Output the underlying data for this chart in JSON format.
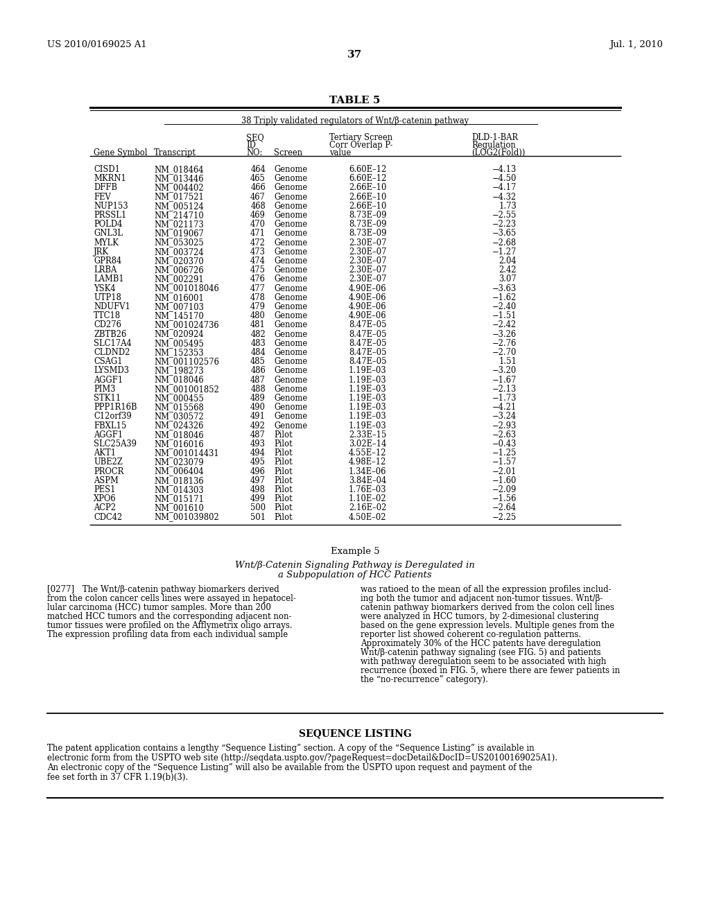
{
  "patent_number": "US 2010/0169025 A1",
  "date": "Jul. 1, 2010",
  "page_number": "37",
  "table_title": "TABLE 5",
  "table_subtitle": "38 Triply validated regulators of Wnt/β-catenin pathway",
  "table_data": [
    [
      "CISD1",
      "NM_018464",
      "464",
      "Genome",
      "6.60E–12",
      "−4.13"
    ],
    [
      "MKRN1",
      "NM_013446",
      "465",
      "Genome",
      "6.60E–12",
      "−4.50"
    ],
    [
      "DFFB",
      "NM_004402",
      "466",
      "Genome",
      "2.66E–10",
      "−4.17"
    ],
    [
      "FEV",
      "NM_017521",
      "467",
      "Genome",
      "2.66E–10",
      "−4.32"
    ],
    [
      "NUP153",
      "NM_005124",
      "468",
      "Genome",
      "2.66E–10",
      "1.73"
    ],
    [
      "PRSSL1",
      "NM_214710",
      "469",
      "Genome",
      "8.73E–09",
      "−2.55"
    ],
    [
      "POLD4",
      "NM_021173",
      "470",
      "Genome",
      "8.73E–09",
      "−2.23"
    ],
    [
      "GNL3L",
      "NM_019067",
      "471",
      "Genome",
      "8.73E–09",
      "−3.65"
    ],
    [
      "MYLK",
      "NM_053025",
      "472",
      "Genome",
      "2.30E–07",
      "−2.68"
    ],
    [
      "JRK",
      "NM_003724",
      "473",
      "Genome",
      "2.30E–07",
      "−1.27"
    ],
    [
      "GPR84",
      "NM_020370",
      "474",
      "Genome",
      "2.30E–07",
      "2.04"
    ],
    [
      "LRBA",
      "NM_006726",
      "475",
      "Genome",
      "2.30E–07",
      "2.42"
    ],
    [
      "LAMB1",
      "NM_002291",
      "476",
      "Genome",
      "2.30E–07",
      "3.07"
    ],
    [
      "YSK4",
      "NM_001018046",
      "477",
      "Genome",
      "4.90E–06",
      "−3.63"
    ],
    [
      "UTP18",
      "NM_016001",
      "478",
      "Genome",
      "4.90E–06",
      "−1.62"
    ],
    [
      "NDUFV1",
      "NM_007103",
      "479",
      "Genome",
      "4.90E–06",
      "−2.40"
    ],
    [
      "TTC18",
      "NM_145170",
      "480",
      "Genome",
      "4.90E–06",
      "−1.51"
    ],
    [
      "CD276",
      "NM_001024736",
      "481",
      "Genome",
      "8.47E–05",
      "−2.42"
    ],
    [
      "ZBTB26",
      "NM_020924",
      "482",
      "Genome",
      "8.47E–05",
      "−3.26"
    ],
    [
      "SLC17A4",
      "NM_005495",
      "483",
      "Genome",
      "8.47E–05",
      "−2.76"
    ],
    [
      "CLDND2",
      "NM_152353",
      "484",
      "Genome",
      "8.47E–05",
      "−2.70"
    ],
    [
      "CSAG1",
      "NM_001102576",
      "485",
      "Genome",
      "8.47E–05",
      "1.51"
    ],
    [
      "LYSMD3",
      "NM_198273",
      "486",
      "Genome",
      "1.19E–03",
      "−3.20"
    ],
    [
      "AGGF1",
      "NM_018046",
      "487",
      "Genome",
      "1.19E–03",
      "−1.67"
    ],
    [
      "PIM3",
      "NM_001001852",
      "488",
      "Genome",
      "1.19E–03",
      "−2.13"
    ],
    [
      "STK11",
      "NM_000455",
      "489",
      "Genome",
      "1.19E–03",
      "−1.73"
    ],
    [
      "PPP1R16B",
      "NM_015568",
      "490",
      "Genome",
      "1.19E–03",
      "−4.21"
    ],
    [
      "C12orf39",
      "NM_030572",
      "491",
      "Genome",
      "1.19E–03",
      "−3.24"
    ],
    [
      "FBXL15",
      "NM_024326",
      "492",
      "Genome",
      "1.19E–03",
      "−2.93"
    ],
    [
      "AGGF1",
      "NM_018046",
      "487",
      "Pilot",
      "2.33E–15",
      "−2.63"
    ],
    [
      "SLC25A39",
      "NM_016016",
      "493",
      "Pilot",
      "3.02E–14",
      "−0.43"
    ],
    [
      "AKT1",
      "NM_001014431",
      "494",
      "Pilot",
      "4.55E–12",
      "−1.25"
    ],
    [
      "UBE2Z",
      "NM_023079",
      "495",
      "Pilot",
      "4.98E–12",
      "−1.57"
    ],
    [
      "PROCR",
      "NM_006404",
      "496",
      "Pilot",
      "1.34E–06",
      "−2.01"
    ],
    [
      "ASPM",
      "NM_018136",
      "497",
      "Pilot",
      "3.84E–04",
      "−1.60"
    ],
    [
      "PES1",
      "NM_014303",
      "498",
      "Pilot",
      "1.76E–03",
      "−2.09"
    ],
    [
      "XPO6",
      "NM_015171",
      "499",
      "Pilot",
      "1.10E–02",
      "−1.56"
    ],
    [
      "ACP2",
      "NM_001610",
      "500",
      "Pilot",
      "2.16E–02",
      "−2.64"
    ],
    [
      "CDC42",
      "NM_001039802",
      "501",
      "Pilot",
      "4.50E–02",
      "−2.25"
    ]
  ],
  "example_title": "Example 5",
  "example_subtitle_1": "Wnt/β-Catenin Signaling Pathway is Deregulated in",
  "example_subtitle_2": "a Subpopulation of HCC Patients",
  "left_lines": [
    "[0277] The Wnt/β-catenin pathway biomarkers derived",
    "from the colon cancer cells lines were assayed in hepatocel-",
    "lular carcinoma (HCC) tumor samples. More than 200",
    "matched HCC tumors and the corresponding adjacent non-",
    "tumor tissues were profiled on the Afflymetrix oligo arrays.",
    "The expression profiling data from each individual sample"
  ],
  "right_lines": [
    "was ratioed to the mean of all the expression profiles includ-",
    "ing both the tumor and adjacent non-tumor tissues. Wnt/β-",
    "catenin pathway biomarkers derived from the colon cell lines",
    "were analyzed in HCC tumors, by 2-dimesional clustering",
    "based on the gene expression levels. Multiple genes from the",
    "reporter list showed coherent co-regulation patterns.",
    "Approximately 30% of the HCC patents have deregulation",
    "Wnt/β-catenin pathway signaling (see FIG. 5) and patients",
    "with pathway deregulation seem to be associated with high",
    "recurrence (boxed in FIG. 5, where there are fewer patients in",
    "the “no-recurrence” category)."
  ],
  "seq_title": "SEQUENCE LISTING",
  "seq_lines": [
    "The patent application contains a lengthy “Sequence Listing” section. A copy of the “Sequence Listing” is available in",
    "electronic form from the USPTO web site (http://seqdata.uspto.gov/?pageRequest=docDetail&DocID=US20100169025A1).",
    "An electronic copy of the “Sequence Listing” will also be available from the USPTO upon request and payment of the",
    "fee set forth in 37 CFR 1.19(b)(3)."
  ],
  "bg_color": "#ffffff"
}
